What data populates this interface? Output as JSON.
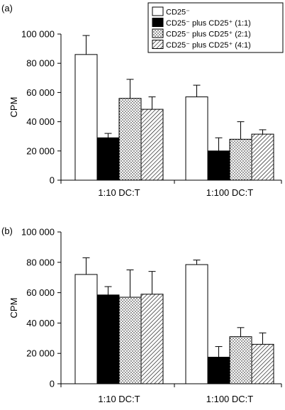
{
  "chart_data": [
    {
      "panel_label": "(a)",
      "type": "bar",
      "ylabel": "CPM",
      "ylim": [
        0,
        100000
      ],
      "yticks": [
        0,
        20000,
        40000,
        60000,
        80000,
        100000
      ],
      "ytick_labels": [
        "0",
        "20 000",
        "40 000",
        "60 000",
        "80 000",
        "100 000"
      ],
      "categories": [
        "1:10 DC:T",
        "1:100 DC:T"
      ],
      "series": [
        {
          "name": "CD25⁻",
          "values": [
            86000,
            57000
          ],
          "errors": [
            13000,
            8000
          ],
          "pattern": "white"
        },
        {
          "name": "CD25⁻ plus CD25⁺ (1:1)",
          "values": [
            29000,
            20000
          ],
          "errors": [
            3000,
            9000
          ],
          "pattern": "black"
        },
        {
          "name": "CD25⁻ plus CD25⁺ (2:1)",
          "values": [
            56000,
            28000
          ],
          "errors": [
            13000,
            12000
          ],
          "pattern": "dots"
        },
        {
          "name": "CD25⁻ plus CD25⁺ (4:1)",
          "values": [
            48500,
            31500
          ],
          "errors": [
            8500,
            3000
          ],
          "pattern": "hatch"
        }
      ],
      "legend": "top-right",
      "grid": false
    },
    {
      "panel_label": "(b)",
      "type": "bar",
      "ylabel": "CPM",
      "ylim": [
        0,
        100000
      ],
      "yticks": [
        0,
        20000,
        40000,
        60000,
        80000,
        100000
      ],
      "ytick_labels": [
        "0",
        "20 000",
        "40 000",
        "60 000",
        "80 000",
        "100 000"
      ],
      "categories": [
        "1:10 DC:T",
        "1:100 DC:T"
      ],
      "series": [
        {
          "name": "CD25⁻",
          "values": [
            72000,
            78500
          ],
          "errors": [
            11000,
            3000
          ],
          "pattern": "white"
        },
        {
          "name": "CD25⁻ plus CD25⁺ (1:1)",
          "values": [
            58500,
            17500
          ],
          "errors": [
            5500,
            7000
          ],
          "pattern": "black"
        },
        {
          "name": "CD25⁻ plus CD25⁺ (2:1)",
          "values": [
            57000,
            31000
          ],
          "errors": [
            18000,
            6000
          ],
          "pattern": "dots"
        },
        {
          "name": "CD25⁻ plus CD25⁺ (4:1)",
          "values": [
            59000,
            26000
          ],
          "errors": [
            15000,
            7500
          ],
          "pattern": "hatch"
        }
      ],
      "legend": "none",
      "grid": false
    }
  ]
}
